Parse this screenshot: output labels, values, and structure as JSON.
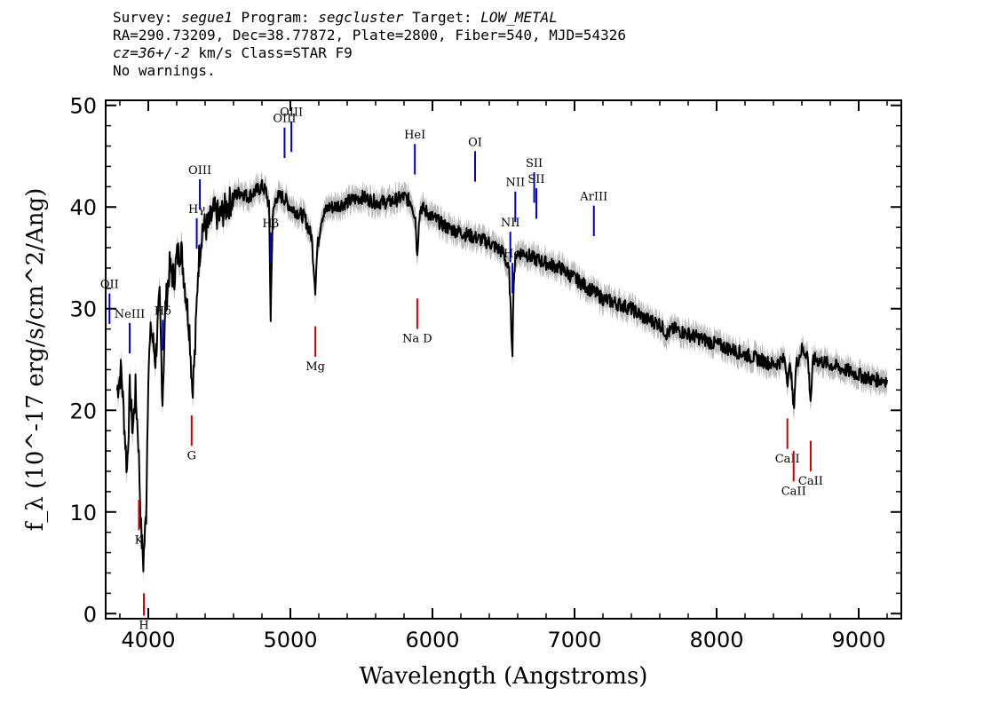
{
  "header": {
    "line1": [
      {
        "text": "Survey: ",
        "italic": false
      },
      {
        "text": "segue1",
        "italic": true
      },
      {
        "text": " Program: ",
        "italic": false
      },
      {
        "text": "segcluster",
        "italic": true
      },
      {
        "text": " Target: ",
        "italic": false
      },
      {
        "text": "LOW_METAL",
        "italic": true
      }
    ],
    "line2": "RA=290.73209, Dec=38.77872, Plate=2800, Fiber=540, MJD=54326",
    "line3": [
      {
        "text": "cz=36+/-2",
        "italic": true
      },
      {
        "text": " km/s Class=STAR F9",
        "italic": false
      }
    ],
    "line4": "No warnings."
  },
  "chart_data": {
    "type": "line",
    "xlabel": "Wavelength (Angstroms)",
    "ylabel": "f_λ (10^-17 erg/s/cm^2/Ang)",
    "xlim": [
      3700,
      9300
    ],
    "ylim": [
      -0.5,
      50.5
    ],
    "x_ticks": [
      4000,
      5000,
      6000,
      7000,
      8000,
      9000
    ],
    "y_ticks": [
      0,
      10,
      20,
      30,
      40,
      50
    ],
    "grid": false,
    "colors": {
      "spectrum": "#000000",
      "error_band": "#bbbbbb",
      "emission_marker": "#0000cc",
      "absorption_marker": "#cc0000"
    },
    "series": [
      {
        "x": [
          3780,
          3810,
          3830,
          3850,
          3870,
          3890,
          3910,
          3930,
          3950,
          3965,
          3985,
          4000,
          4020,
          4050,
          4080,
          4100,
          4120,
          4150,
          4180,
          4200,
          4230,
          4260,
          4290,
          4310,
          4330,
          4350,
          4380,
          4420,
          4460,
          4500,
          4550,
          4600,
          4650,
          4700,
          4750,
          4800,
          4830,
          4850,
          4861,
          4875,
          4900,
          4950,
          5000,
          5050,
          5100,
          5150,
          5175,
          5190,
          5220,
          5270,
          5300,
          5400,
          5500,
          5600,
          5700,
          5800,
          5850,
          5880,
          5893,
          5905,
          5920,
          6000,
          6100,
          6200,
          6300,
          6400,
          6450,
          6500,
          6540,
          6555,
          6563,
          6572,
          6590,
          6650,
          6700,
          6800,
          6900,
          7000,
          7100,
          7200,
          7300,
          7400,
          7500,
          7600,
          7650,
          7700,
          7800,
          7900,
          8000,
          8100,
          8200,
          8300,
          8400,
          8480,
          8500,
          8520,
          8542,
          8560,
          8600,
          8640,
          8662,
          8680,
          8700,
          8800,
          8900,
          9000,
          9100,
          9200
        ],
        "y": [
          22,
          24,
          19,
          14,
          22,
          18,
          22,
          17,
          8,
          5,
          10,
          24,
          28,
          25,
          31,
          21,
          30,
          34,
          33,
          35,
          36,
          32,
          28,
          22,
          26,
          34,
          38,
          38,
          39.5,
          39,
          40,
          41,
          41.5,
          41,
          41.5,
          42,
          41.5,
          40,
          29,
          39,
          41,
          41,
          40,
          39.5,
          39,
          37,
          32,
          36,
          39,
          40,
          40,
          40.5,
          41,
          40.5,
          40.5,
          41,
          40.5,
          39,
          35,
          39,
          40,
          39,
          38,
          37.5,
          37,
          36.5,
          36,
          35.5,
          33.5,
          28,
          26,
          33,
          35.5,
          35.5,
          35,
          34.5,
          34,
          33,
          32,
          31,
          30.5,
          30,
          29,
          28.5,
          27.5,
          28,
          27.5,
          27,
          26.5,
          26,
          25.5,
          25,
          24.5,
          25,
          23,
          24.5,
          20,
          24.5,
          26,
          25.5,
          21,
          25,
          25,
          24.5,
          24,
          23.5,
          23,
          23
        ]
      }
    ],
    "emission_lines": [
      {
        "label": "NeIII",
        "x": 3869
      },
      {
        "label": "OII",
        "x": 3727
      },
      {
        "label": "Hδ",
        "x": 4102
      },
      {
        "label": "Hγ",
        "x": 4341
      },
      {
        "label": "OIII",
        "x": 4363
      },
      {
        "label": "Hβ",
        "x": 4861
      },
      {
        "label": "OIII",
        "x": 4959
      },
      {
        "label": "OIII",
        "x": 5007
      },
      {
        "label": "HeI",
        "x": 5876
      },
      {
        "label": "OI",
        "x": 6300
      },
      {
        "label": "NII",
        "x": 6548
      },
      {
        "label": "Hα",
        "x": 6563
      },
      {
        "label": "NII",
        "x": 6583
      },
      {
        "label": "SII",
        "x": 6716
      },
      {
        "label": "SII",
        "x": 6731
      },
      {
        "label": "ArIII",
        "x": 7136
      }
    ],
    "absorption_lines": [
      {
        "label": "K",
        "x": 3934
      },
      {
        "label": "H",
        "x": 3969
      },
      {
        "label": "G",
        "x": 4305
      },
      {
        "label": "Mg",
        "x": 5176
      },
      {
        "label": "Na D",
        "x": 5893
      },
      {
        "label": "CaII",
        "x": 8498
      },
      {
        "label": "CaII",
        "x": 8542
      },
      {
        "label": "CaII",
        "x": 8662
      }
    ]
  }
}
